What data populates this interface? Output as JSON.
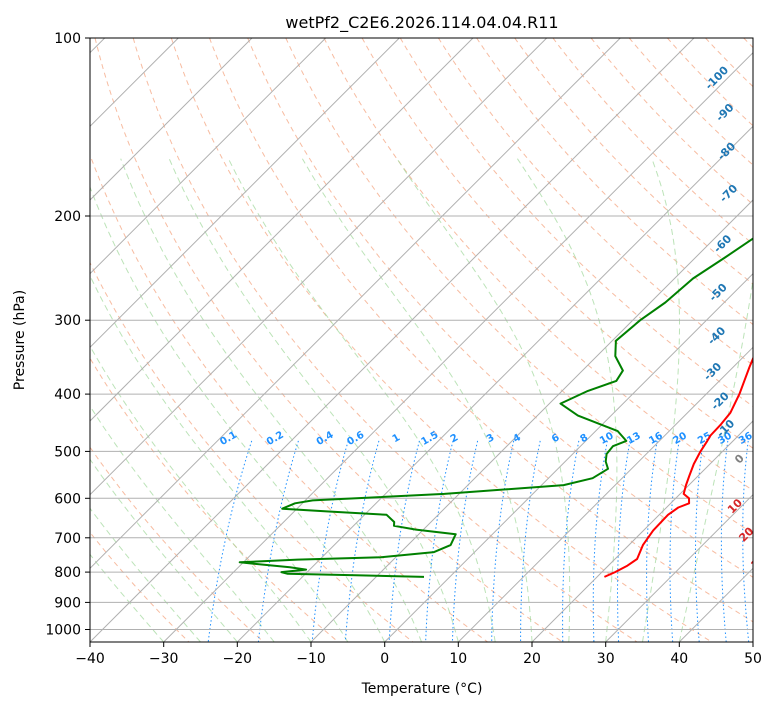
{
  "chart_data": {
    "type": "line",
    "title": "wetPf2_C2E6.2026.114.04.04.R11",
    "xlabel": "Temperature (°C)",
    "ylabel": "Pressure (hPa)",
    "xlim": [
      -40,
      50
    ],
    "ylim": [
      1050,
      100
    ],
    "x_ticks": [
      -40,
      -30,
      -20,
      -10,
      0,
      10,
      20,
      30,
      40,
      50
    ],
    "x_tick_labels": [
      "−40",
      "−30",
      "−20",
      "−10",
      "0",
      "10",
      "20",
      "30",
      "40",
      "50"
    ],
    "y_ticks": [
      100,
      200,
      300,
      400,
      500,
      600,
      700,
      800,
      900,
      1000
    ],
    "y_tick_labels": [
      "100",
      "200",
      "300",
      "400",
      "500",
      "600",
      "700",
      "800",
      "900",
      "1000"
    ],
    "colors": {
      "temperature": "#ff0000",
      "dewpoint": "#008000",
      "isotherm": "#808080",
      "dry_adiabat": "#f4a582",
      "moist_adiabat": "#a6d9a0",
      "mixing_ratio": "#1e90ff",
      "temp_label": "#d62728",
      "neg_temp_label": "#1f77b4"
    },
    "series": [
      {
        "name": "Temperature",
        "points": [
          [
            21.0,
            815
          ],
          [
            21.8,
            800
          ],
          [
            22.6,
            780
          ],
          [
            23.0,
            760
          ],
          [
            21.9,
            720
          ],
          [
            21.3,
            680
          ],
          [
            21.2,
            640
          ],
          [
            21.6,
            622
          ],
          [
            22.5,
            612
          ],
          [
            21.8,
            600
          ],
          [
            20.5,
            590
          ],
          [
            19.6,
            570
          ],
          [
            18.8,
            550
          ],
          [
            17.8,
            525
          ],
          [
            17.0,
            500
          ],
          [
            16.5,
            480
          ],
          [
            16.2,
            470
          ],
          [
            16.1,
            450
          ],
          [
            15.8,
            430
          ],
          [
            14.5,
            400
          ],
          [
            12.2,
            360
          ],
          [
            9.8,
            320
          ],
          [
            7.0,
            280
          ],
          [
            4.5,
            250
          ],
          [
            2.0,
            225
          ],
          [
            -0.7,
            200
          ],
          [
            -0.6,
            190
          ],
          [
            1.0,
            180
          ],
          [
            3.2,
            170
          ],
          [
            5.5,
            160
          ],
          [
            6.8,
            150
          ],
          [
            7.5,
            140
          ],
          [
            7.8,
            130
          ],
          [
            8.5,
            120
          ],
          [
            9.8,
            110
          ],
          [
            11.5,
            102
          ],
          [
            12.0,
            100
          ]
        ]
      },
      {
        "name": "Dewpoint",
        "points": [
          [
            -3.5,
            815
          ],
          [
            -13.0,
            810
          ],
          [
            -22.5,
            805
          ],
          [
            -23.5,
            800
          ],
          [
            -20.5,
            792
          ],
          [
            -23.0,
            785
          ],
          [
            -30.5,
            770
          ],
          [
            -23.0,
            762
          ],
          [
            -12.0,
            755
          ],
          [
            -5.5,
            740
          ],
          [
            -4.2,
            720
          ],
          [
            -5.0,
            690
          ],
          [
            -11.0,
            678
          ],
          [
            -14.5,
            668
          ],
          [
            -15.0,
            658
          ],
          [
            -17.0,
            640
          ],
          [
            -25.0,
            632
          ],
          [
            -32.0,
            625
          ],
          [
            -31.0,
            612
          ],
          [
            -29.0,
            605
          ],
          [
            -12.0,
            590
          ],
          [
            3.0,
            570
          ],
          [
            6.0,
            555
          ],
          [
            6.8,
            535
          ],
          [
            5.5,
            520
          ],
          [
            4.6,
            505
          ],
          [
            4.4,
            490
          ],
          [
            5.5,
            480
          ],
          [
            3.0,
            462
          ],
          [
            -4.5,
            435
          ],
          [
            -8.5,
            415
          ],
          [
            -6.5,
            395
          ],
          [
            -4.0,
            380
          ],
          [
            -4.5,
            365
          ],
          [
            -7.5,
            345
          ],
          [
            -9.5,
            325
          ],
          [
            -9.0,
            300
          ],
          [
            -8.0,
            280
          ],
          [
            -7.5,
            255
          ],
          [
            -6.0,
            235
          ],
          [
            -4.5,
            215
          ],
          [
            -6.5,
            200
          ],
          [
            -6.5,
            190
          ],
          [
            -8.0,
            180
          ],
          [
            -9.0,
            165
          ],
          [
            -8.7,
            150
          ],
          [
            -7.0,
            140
          ],
          [
            -6.5,
            130
          ],
          [
            -5.0,
            120
          ],
          [
            -4.0,
            110
          ],
          [
            -2.0,
            104
          ],
          [
            -1.0,
            100
          ]
        ]
      }
    ],
    "dry_adiabat_labels": [
      {
        "label": "0",
        "t": 24.0,
        "p": 520
      },
      {
        "label": "10",
        "t": 29.8,
        "p": 625
      },
      {
        "label": "20",
        "t": 35.2,
        "p": 698
      },
      {
        "label": "30",
        "t": 40.5,
        "p": 775
      },
      {
        "label": "40",
        "t": 46.5,
        "p": 868
      }
    ],
    "isotherm_labels": [
      {
        "label": "-100",
        "t": -30.8,
        "p": 118
      },
      {
        "label": "-90",
        "t": -25.0,
        "p": 135
      },
      {
        "label": "-80",
        "t": -19.5,
        "p": 157
      },
      {
        "label": "-70",
        "t": -13.5,
        "p": 185
      },
      {
        "label": "-60",
        "t": -7.5,
        "p": 225
      },
      {
        "label": "-50",
        "t": -1.5,
        "p": 272
      },
      {
        "label": "-40",
        "t": 4.2,
        "p": 322
      },
      {
        "label": "-30",
        "t": 8.5,
        "p": 370
      },
      {
        "label": "-20",
        "t": 13.5,
        "p": 415
      },
      {
        "label": "-10",
        "t": 18.0,
        "p": 462
      }
    ],
    "mixing_ratio_labels": [
      "0.1",
      "0.2",
      "0.4",
      "0.6",
      "1",
      "1.5",
      "2",
      "3",
      "4",
      "6",
      "8",
      "10",
      "13",
      "16",
      "20",
      "25",
      "30",
      "36"
    ],
    "mixing_ratio_values": [
      0.1,
      0.2,
      0.4,
      0.6,
      1,
      1.5,
      2,
      3,
      4,
      6,
      8,
      10,
      13,
      16,
      20,
      25,
      30,
      36
    ],
    "mixing_ratio_top_p": 480,
    "grid": true
  }
}
